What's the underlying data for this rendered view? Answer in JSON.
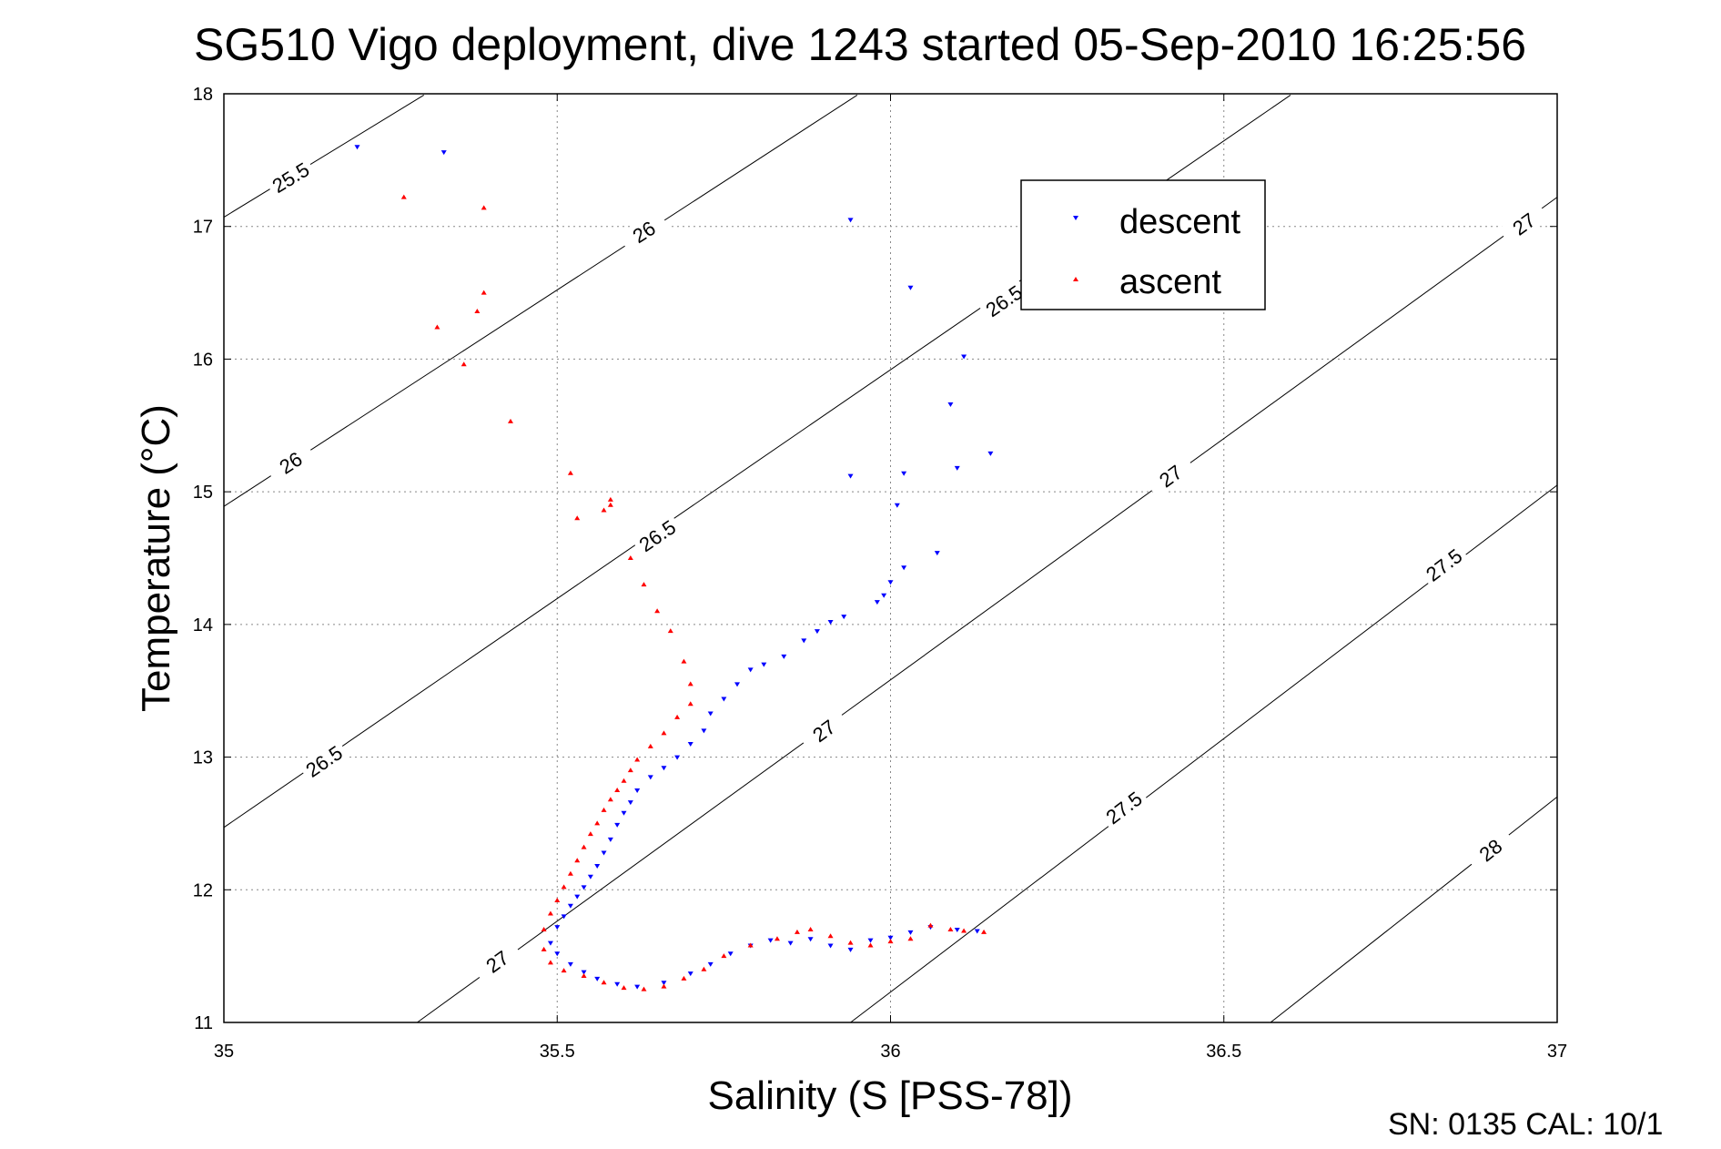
{
  "chart_data": {
    "type": "scatter",
    "title": "SG510 Vigo deployment, dive 1243 started 05-Sep-2010 16:25:56",
    "xlabel": "Salinity (S [PSS-78])",
    "ylabel": "Temperature (°C)",
    "xlim": [
      35,
      37
    ],
    "ylim": [
      11,
      18
    ],
    "xticks": [
      "35",
      "35.5",
      "36",
      "36.5",
      "37"
    ],
    "yticks": [
      "11",
      "12",
      "13",
      "14",
      "15",
      "16",
      "17",
      "18"
    ],
    "grid": true,
    "legend_position": "top-right",
    "footer": "SN: 0135  CAL: 10/1",
    "contour_lines": [
      {
        "level": 25.5,
        "points": [
          [
            35.0,
            17.07
          ],
          [
            35.3,
            17.99
          ]
        ],
        "labels": [
          {
            "text": "25.5",
            "x": 35.1,
            "y": 17.37
          }
        ]
      },
      {
        "level": 26.0,
        "points": [
          [
            35.0,
            14.89
          ],
          [
            35.95,
            17.99
          ]
        ],
        "labels": [
          {
            "text": "26",
            "x": 35.1,
            "y": 15.22
          },
          {
            "text": "26",
            "x": 35.63,
            "y": 16.96
          }
        ]
      },
      {
        "level": 26.5,
        "points": [
          [
            35.0,
            12.47
          ],
          [
            36.6,
            17.99
          ]
        ],
        "labels": [
          {
            "text": "26.5",
            "x": 35.15,
            "y": 12.97
          },
          {
            "text": "26.5",
            "x": 35.65,
            "y": 14.67
          },
          {
            "text": "26.5",
            "x": 36.17,
            "y": 16.44
          }
        ]
      },
      {
        "level": 27.0,
        "points": [
          [
            35.29,
            11.0
          ],
          [
            37.0,
            17.22
          ]
        ],
        "labels": [
          {
            "text": "27",
            "x": 35.41,
            "y": 11.46
          },
          {
            "text": "27",
            "x": 35.9,
            "y": 13.2
          },
          {
            "text": "27",
            "x": 36.42,
            "y": 15.12
          },
          {
            "text": "27",
            "x": 36.95,
            "y": 17.02
          }
        ]
      },
      {
        "level": 27.5,
        "points": [
          [
            35.94,
            11.0
          ],
          [
            37.0,
            15.05
          ]
        ],
        "labels": [
          {
            "text": "27.5",
            "x": 36.35,
            "y": 12.62
          },
          {
            "text": "27.5",
            "x": 36.83,
            "y": 14.45
          }
        ]
      },
      {
        "level": 28.0,
        "points": [
          [
            36.57,
            11.0
          ],
          [
            37.0,
            12.7
          ]
        ],
        "labels": [
          {
            "text": "28",
            "x": 36.9,
            "y": 12.3
          }
        ]
      }
    ],
    "series": [
      {
        "name": "descent",
        "color": "#0000ff",
        "marker": "triangle-down",
        "points": [
          [
            35.2,
            17.6
          ],
          [
            35.33,
            17.56
          ],
          [
            35.94,
            17.05
          ],
          [
            36.03,
            16.54
          ],
          [
            36.11,
            16.02
          ],
          [
            36.09,
            15.66
          ],
          [
            36.15,
            15.29
          ],
          [
            36.1,
            15.18
          ],
          [
            35.94,
            15.12
          ],
          [
            36.02,
            15.14
          ],
          [
            36.01,
            14.9
          ],
          [
            36.07,
            14.54
          ],
          [
            36.02,
            14.43
          ],
          [
            36.0,
            14.32
          ],
          [
            35.99,
            14.22
          ],
          [
            35.98,
            14.17
          ],
          [
            35.93,
            14.06
          ],
          [
            35.91,
            14.02
          ],
          [
            35.89,
            13.95
          ],
          [
            35.87,
            13.88
          ],
          [
            35.84,
            13.76
          ],
          [
            35.81,
            13.7
          ],
          [
            35.79,
            13.66
          ],
          [
            35.77,
            13.55
          ],
          [
            35.75,
            13.44
          ],
          [
            35.73,
            13.33
          ],
          [
            35.72,
            13.2
          ],
          [
            35.7,
            13.1
          ],
          [
            35.68,
            13.0
          ],
          [
            35.66,
            12.92
          ],
          [
            35.64,
            12.85
          ],
          [
            35.62,
            12.75
          ],
          [
            35.61,
            12.66
          ],
          [
            35.6,
            12.58
          ],
          [
            35.59,
            12.49
          ],
          [
            35.58,
            12.38
          ],
          [
            35.57,
            12.28
          ],
          [
            35.56,
            12.18
          ],
          [
            35.55,
            12.1
          ],
          [
            35.54,
            12.02
          ],
          [
            35.53,
            11.95
          ],
          [
            35.52,
            11.88
          ],
          [
            35.51,
            11.8
          ],
          [
            35.5,
            11.72
          ],
          [
            35.49,
            11.6
          ],
          [
            35.5,
            11.52
          ],
          [
            35.52,
            11.44
          ],
          [
            35.54,
            11.38
          ],
          [
            35.56,
            11.33
          ],
          [
            35.59,
            11.29
          ],
          [
            35.62,
            11.27
          ],
          [
            35.66,
            11.3
          ],
          [
            35.7,
            11.37
          ],
          [
            35.73,
            11.44
          ],
          [
            35.76,
            11.52
          ],
          [
            35.79,
            11.58
          ],
          [
            35.82,
            11.62
          ],
          [
            35.85,
            11.6
          ],
          [
            35.88,
            11.63
          ],
          [
            35.91,
            11.58
          ],
          [
            35.94,
            11.55
          ],
          [
            35.97,
            11.62
          ],
          [
            36.0,
            11.64
          ],
          [
            36.03,
            11.68
          ],
          [
            36.06,
            11.72
          ],
          [
            36.1,
            11.7
          ],
          [
            36.13,
            11.69
          ]
        ]
      },
      {
        "name": "ascent",
        "color": "#ff0000",
        "marker": "triangle-up",
        "points": [
          [
            35.27,
            17.22
          ],
          [
            35.39,
            17.14
          ],
          [
            35.39,
            16.5
          ],
          [
            35.38,
            16.36
          ],
          [
            35.32,
            16.24
          ],
          [
            35.36,
            15.96
          ],
          [
            35.43,
            15.53
          ],
          [
            35.52,
            15.14
          ],
          [
            35.58,
            14.94
          ],
          [
            35.58,
            14.9
          ],
          [
            35.53,
            14.8
          ],
          [
            35.57,
            14.86
          ],
          [
            35.61,
            14.5
          ],
          [
            35.63,
            14.3
          ],
          [
            35.65,
            14.1
          ],
          [
            35.67,
            13.95
          ],
          [
            35.69,
            13.72
          ],
          [
            35.7,
            13.55
          ],
          [
            35.7,
            13.4
          ],
          [
            35.68,
            13.3
          ],
          [
            35.66,
            13.18
          ],
          [
            35.64,
            13.08
          ],
          [
            35.62,
            12.98
          ],
          [
            35.61,
            12.9
          ],
          [
            35.6,
            12.82
          ],
          [
            35.59,
            12.75
          ],
          [
            35.58,
            12.68
          ],
          [
            35.57,
            12.6
          ],
          [
            35.56,
            12.5
          ],
          [
            35.55,
            12.42
          ],
          [
            35.54,
            12.32
          ],
          [
            35.53,
            12.22
          ],
          [
            35.52,
            12.12
          ],
          [
            35.51,
            12.02
          ],
          [
            35.5,
            11.92
          ],
          [
            35.49,
            11.82
          ],
          [
            35.48,
            11.7
          ],
          [
            35.48,
            11.55
          ],
          [
            35.49,
            11.45
          ],
          [
            35.51,
            11.39
          ],
          [
            35.54,
            11.35
          ],
          [
            35.57,
            11.3
          ],
          [
            35.6,
            11.26
          ],
          [
            35.63,
            11.25
          ],
          [
            35.66,
            11.27
          ],
          [
            35.69,
            11.33
          ],
          [
            35.72,
            11.4
          ],
          [
            35.75,
            11.5
          ],
          [
            35.79,
            11.58
          ],
          [
            35.83,
            11.63
          ],
          [
            35.86,
            11.68
          ],
          [
            35.88,
            11.7
          ],
          [
            35.91,
            11.65
          ],
          [
            35.94,
            11.6
          ],
          [
            35.97,
            11.58
          ],
          [
            36.0,
            11.61
          ],
          [
            36.03,
            11.63
          ],
          [
            36.06,
            11.73
          ],
          [
            36.09,
            11.7
          ],
          [
            36.11,
            11.69
          ],
          [
            36.14,
            11.68
          ]
        ]
      }
    ]
  }
}
